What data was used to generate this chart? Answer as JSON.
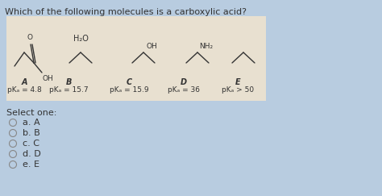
{
  "title": "Which of the following molecules is a carboxylic acid?",
  "bg_outer": "#b8cce0",
  "bg_panel": "#e8e0d0",
  "bg_lower": "#c8d8e4",
  "text_color": "#333333",
  "line_color": "#333333",
  "molecules": [
    {
      "label": "A",
      "pka": "pKₐ = 4.8",
      "type": "carboxylic_acid"
    },
    {
      "label": "B",
      "pka": "pKₐ = 15.7",
      "type": "water"
    },
    {
      "label": "C",
      "pka": "pKₐ = 15.9",
      "type": "alcohol"
    },
    {
      "label": "D",
      "pka": "pKₐ = 36",
      "type": "amine"
    },
    {
      "label": "E",
      "pka": "pKₐ > 50",
      "type": "alkane"
    }
  ],
  "select_one": "Select one:",
  "options": [
    "a. A",
    "b. B",
    "c. C",
    "d. D",
    "e. E"
  ]
}
